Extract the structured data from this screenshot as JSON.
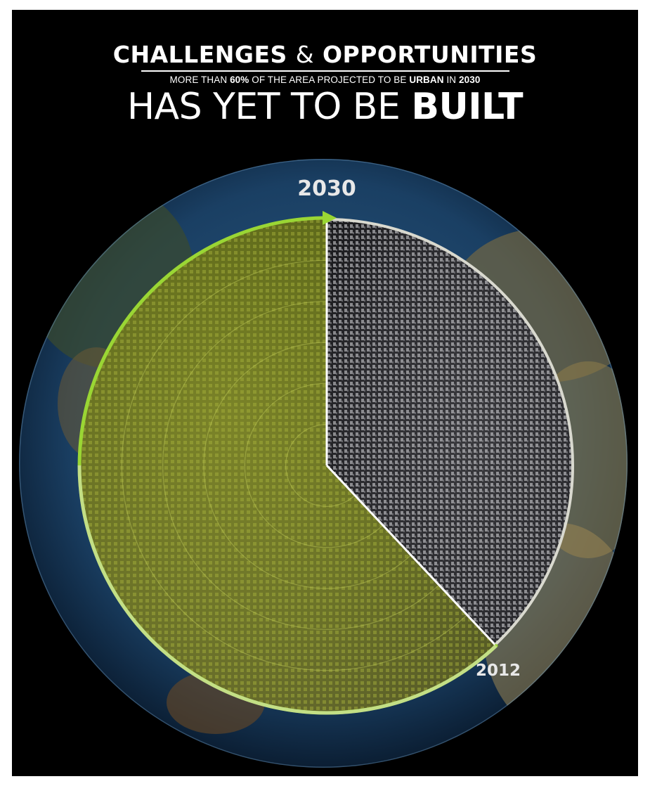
{
  "title": {
    "main_a": "CHALLENGES",
    "amp": "&",
    "main_b": "OPPORTUNITIES",
    "sub_1": "MORE THAN ",
    "sub_pct": "60%",
    "sub_2": " OF THE AREA PROJECTED TO BE ",
    "sub_urban": "URBAN",
    "sub_3": " IN ",
    "sub_year": "2030",
    "headline_a": "HAS YET TO BE ",
    "headline_b": "BUILT"
  },
  "colors": {
    "background": "#000000",
    "unbuilt": "#8f9a2e",
    "built": "#b9b9bc",
    "arrow": "#9ad634",
    "ocean": "#1f4a73"
  },
  "chart_data": {
    "type": "pie",
    "labels": [
      "2030",
      "2012"
    ],
    "slices": [
      {
        "name": "Area yet to be built by 2030",
        "percent": 62
      },
      {
        "name": "Urban area built by 2012",
        "percent": 38
      }
    ],
    "annotation": "More than 60% of the area projected to be urban in 2030 has yet to be built"
  },
  "icons": {
    "arrow": "arrow-head-icon",
    "earth": "earth-globe-icon"
  }
}
